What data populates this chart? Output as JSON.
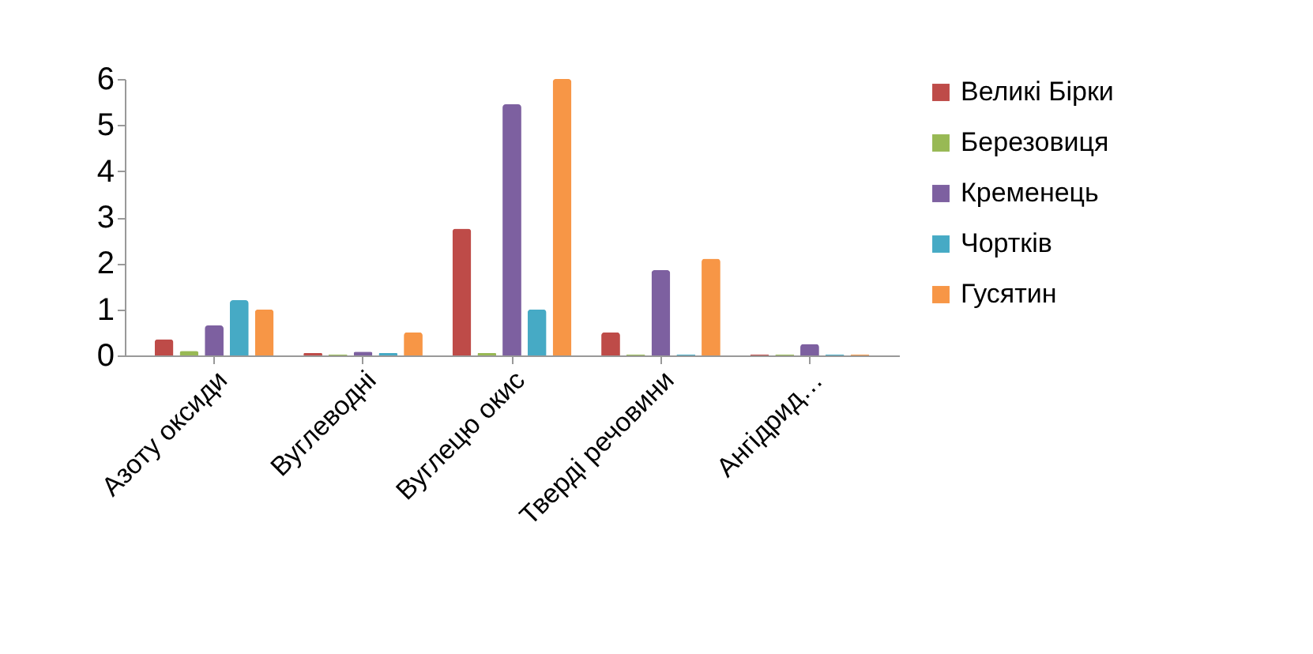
{
  "chart_data": {
    "type": "bar",
    "categories": [
      "Азоту оксиди",
      "Вуглеводні",
      "Вуглецю окис",
      "Тверді речовини",
      "Ангідрид…"
    ],
    "series": [
      {
        "name": "Великі Бірки",
        "color": "#be4b48",
        "values": [
          0.35,
          0.05,
          2.75,
          0.5,
          0.02
        ]
      },
      {
        "name": "Березовиця",
        "color": "#98b954",
        "values": [
          0.1,
          0.02,
          0.05,
          0.02,
          0.02
        ]
      },
      {
        "name": "Кременець",
        "color": "#7d60a0",
        "values": [
          0.65,
          0.08,
          5.45,
          1.85,
          0.25
        ]
      },
      {
        "name": "Чортків",
        "color": "#46aac5",
        "values": [
          1.2,
          0.05,
          1.0,
          0.02,
          0.02
        ]
      },
      {
        "name": "Гусятин",
        "color": "#f79646",
        "values": [
          1.0,
          0.5,
          6.0,
          2.1,
          0.02
        ]
      }
    ],
    "ylim": [
      0,
      6
    ],
    "yticks": [
      0,
      1,
      2,
      3,
      4,
      5,
      6
    ],
    "grid": false,
    "legend": "right"
  }
}
